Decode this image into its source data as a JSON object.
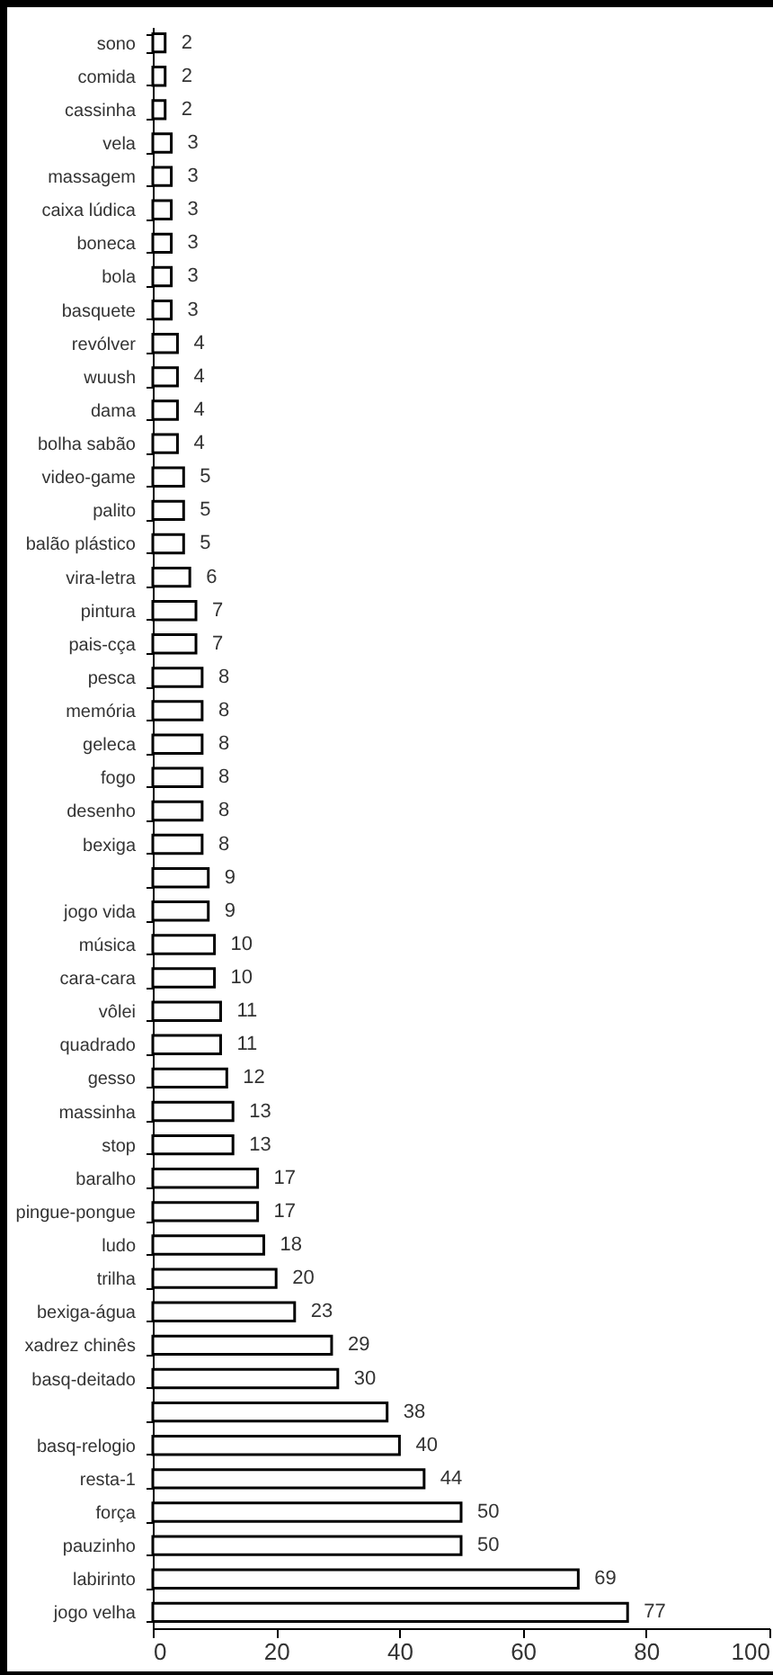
{
  "chart_data": {
    "type": "bar",
    "orientation": "horizontal",
    "categories": [
      "sono",
      "comida",
      "cassinha",
      "vela",
      "massagem",
      "caixa lúdica",
      "boneca",
      "bola",
      "basquete",
      "revólver",
      "wuush",
      "dama",
      "bolha sabão",
      "video-game",
      "palito",
      "balão plástico",
      "vira-letra",
      "pintura",
      "pais-cça",
      "pesca",
      "memória",
      "geleca",
      "fogo",
      "desenho",
      "bexiga",
      null,
      "jogo vida",
      "música",
      "cara-cara",
      "vôlei",
      "quadrado",
      "gesso",
      "massinha",
      "stop",
      "baralho",
      "pingue-pongue",
      "ludo",
      "trilha",
      "bexiga-água",
      "xadrez chinês",
      "basq-deitado",
      null,
      "basq-relogio",
      "resta-1",
      "força",
      "pauzinho",
      "labirinto",
      "jogo velha"
    ],
    "values": [
      2,
      2,
      2,
      3,
      3,
      3,
      3,
      3,
      3,
      4,
      4,
      4,
      4,
      5,
      5,
      5,
      6,
      7,
      7,
      8,
      8,
      8,
      8,
      8,
      8,
      9,
      9,
      10,
      10,
      11,
      11,
      12,
      13,
      13,
      17,
      17,
      18,
      20,
      23,
      29,
      30,
      38,
      40,
      44,
      50,
      50,
      69,
      77
    ],
    "color": "#ffffff",
    "xlim": [
      0,
      100
    ],
    "xticks": [
      0,
      20,
      40,
      60,
      80,
      100
    ],
    "grid": false,
    "data_labels": true
  }
}
